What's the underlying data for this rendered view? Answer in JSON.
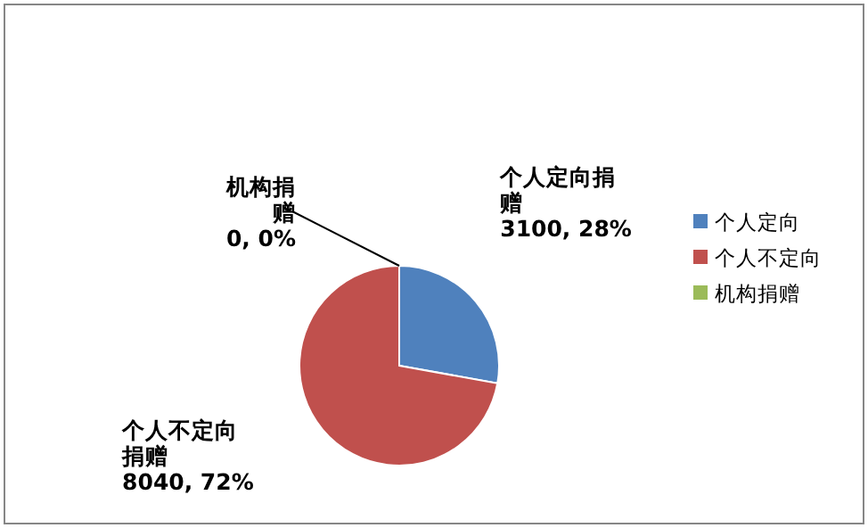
{
  "chart_data": {
    "type": "pie",
    "categories": [
      "个人定向",
      "个人不定向",
      "机构捐赠"
    ],
    "values": [
      3100,
      8040,
      0
    ],
    "colors": [
      "#4f81bd",
      "#c0504d",
      "#9bbb59"
    ],
    "value_labels": [
      "个人定向捐赠\n3100, 28%",
      "个人不定向捐赠\n8040, 72%",
      "机构捐赠\n0, 0%"
    ],
    "legend": "right"
  }
}
